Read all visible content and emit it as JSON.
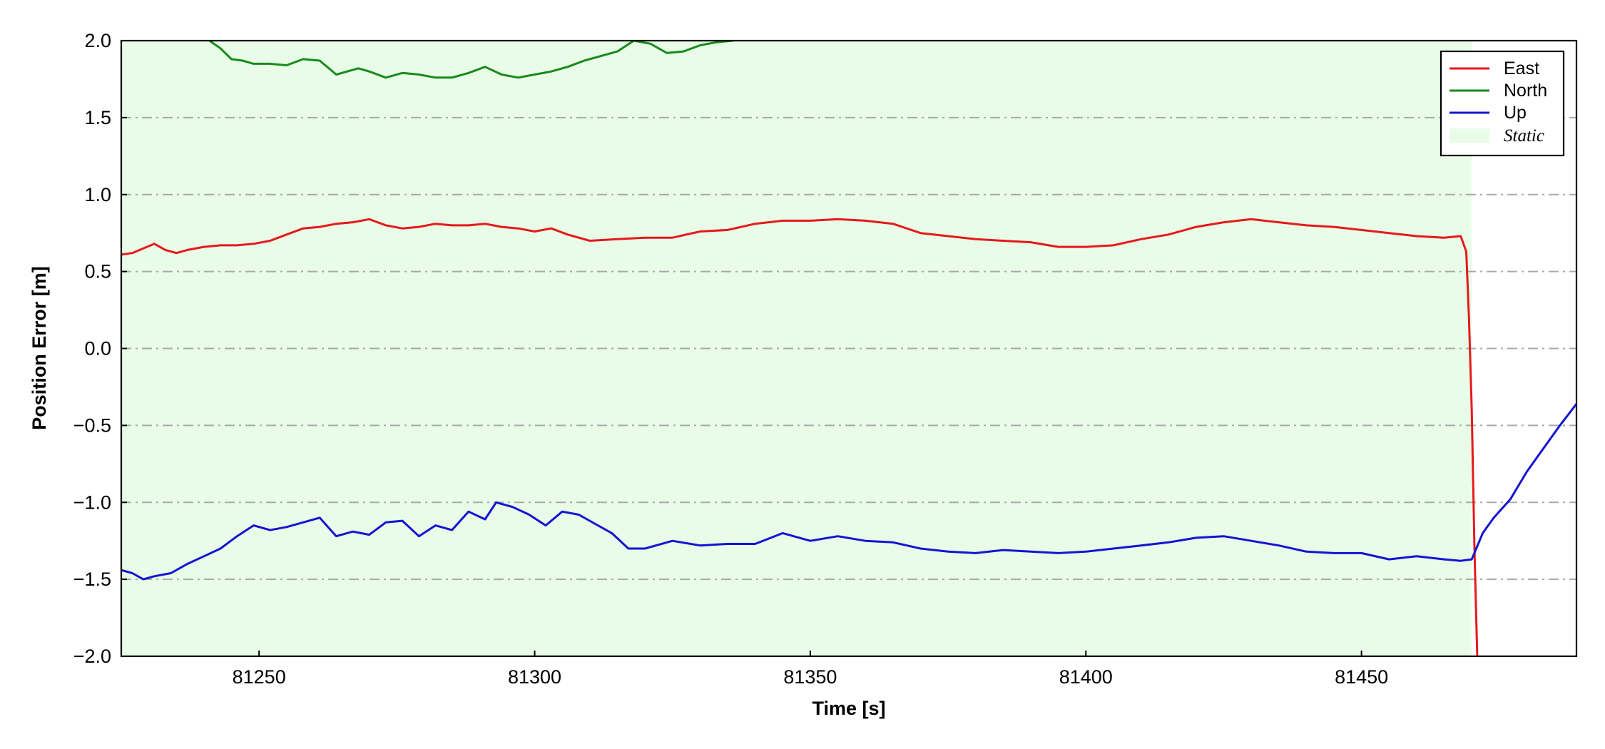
{
  "chart_data": {
    "type": "line",
    "title": "",
    "xlabel": "Time [s]",
    "ylabel": "Position Error [m]",
    "xlim": [
      81225,
      81489
    ],
    "ylim": [
      -2.0,
      2.0
    ],
    "xticks": [
      81250,
      81300,
      81350,
      81400,
      81450
    ],
    "xtick_labels": [
      "81250",
      "81300",
      "81350",
      "81400",
      "81450"
    ],
    "yticks": [
      -2.0,
      -1.5,
      -1.0,
      -0.5,
      0.0,
      0.5,
      1.0,
      1.5,
      2.0
    ],
    "ytick_labels": [
      "−2.0",
      "−1.5",
      "−1.0",
      "−0.5",
      "0.0",
      "0.5",
      "1.0",
      "1.5",
      "2.0"
    ],
    "grid": "horizontal dash-dot",
    "legend_position": "top-right",
    "shaded_region": {
      "name": "Static",
      "x_start": 81225,
      "x_end": 81470,
      "color": "#e8fce8"
    },
    "series": [
      {
        "name": "East",
        "color": "#e41a1c",
        "x": [
          81225,
          81227,
          81229,
          81231,
          81233,
          81235,
          81237,
          81240,
          81243,
          81246,
          81249,
          81252,
          81255,
          81258,
          81261,
          81264,
          81267,
          81270,
          81273,
          81276,
          81279,
          81282,
          81285,
          81288,
          81291,
          81294,
          81297,
          81300,
          81303,
          81306,
          81310,
          81315,
          81320,
          81325,
          81330,
          81335,
          81340,
          81345,
          81350,
          81355,
          81360,
          81365,
          81370,
          81375,
          81380,
          81385,
          81390,
          81395,
          81400,
          81405,
          81410,
          81415,
          81420,
          81425,
          81430,
          81435,
          81440,
          81445,
          81450,
          81455,
          81460,
          81465,
          81468,
          81469,
          81469.5,
          81470,
          81470.5,
          81471
        ],
        "y": [
          0.61,
          0.62,
          0.65,
          0.68,
          0.64,
          0.62,
          0.64,
          0.66,
          0.67,
          0.67,
          0.68,
          0.7,
          0.74,
          0.78,
          0.79,
          0.81,
          0.82,
          0.84,
          0.8,
          0.78,
          0.79,
          0.81,
          0.8,
          0.8,
          0.81,
          0.79,
          0.78,
          0.76,
          0.78,
          0.74,
          0.7,
          0.71,
          0.72,
          0.72,
          0.76,
          0.77,
          0.81,
          0.83,
          0.83,
          0.84,
          0.83,
          0.81,
          0.75,
          0.73,
          0.71,
          0.7,
          0.69,
          0.66,
          0.66,
          0.67,
          0.71,
          0.74,
          0.79,
          0.82,
          0.84,
          0.82,
          0.8,
          0.79,
          0.77,
          0.75,
          0.73,
          0.72,
          0.73,
          0.63,
          0.2,
          -0.4,
          -1.3,
          -2.0
        ]
      },
      {
        "name": "North",
        "color": "#1a8a1a",
        "x": [
          81241,
          81243,
          81245,
          81247,
          81249,
          81252,
          81255,
          81258,
          81261,
          81264,
          81266,
          81268,
          81270,
          81273,
          81276,
          81279,
          81282,
          81285,
          81288,
          81291,
          81294,
          81297,
          81300,
          81303,
          81306,
          81309,
          81312,
          81315,
          81318,
          81321,
          81324,
          81327,
          81330,
          81333,
          81336
        ],
        "y": [
          2.0,
          1.95,
          1.88,
          1.87,
          1.85,
          1.85,
          1.84,
          1.88,
          1.87,
          1.78,
          1.8,
          1.82,
          1.8,
          1.76,
          1.79,
          1.78,
          1.76,
          1.76,
          1.79,
          1.83,
          1.78,
          1.76,
          1.78,
          1.8,
          1.83,
          1.87,
          1.9,
          1.93,
          2.0,
          1.98,
          1.92,
          1.93,
          1.97,
          1.99,
          2.0
        ]
      },
      {
        "name": "Up",
        "color": "#1414d2",
        "x": [
          81225,
          81227,
          81229,
          81231,
          81234,
          81237,
          81240,
          81243,
          81246,
          81249,
          81252,
          81255,
          81258,
          81261,
          81264,
          81267,
          81270,
          81273,
          81276,
          81279,
          81282,
          81285,
          81288,
          81291,
          81293,
          81296,
          81299,
          81302,
          81305,
          81308,
          81311,
          81314,
          81317,
          81320,
          81325,
          81330,
          81335,
          81340,
          81345,
          81350,
          81355,
          81360,
          81365,
          81370,
          81375,
          81380,
          81385,
          81390,
          81395,
          81400,
          81405,
          81410,
          81415,
          81420,
          81425,
          81430,
          81435,
          81440,
          81445,
          81450,
          81455,
          81460,
          81465,
          81468,
          81470,
          81472,
          81474,
          81477,
          81480,
          81483,
          81486,
          81489
        ],
        "y": [
          -1.44,
          -1.46,
          -1.5,
          -1.48,
          -1.46,
          -1.4,
          -1.35,
          -1.3,
          -1.22,
          -1.15,
          -1.18,
          -1.16,
          -1.13,
          -1.1,
          -1.22,
          -1.19,
          -1.21,
          -1.13,
          -1.12,
          -1.22,
          -1.15,
          -1.18,
          -1.06,
          -1.11,
          -1.0,
          -1.03,
          -1.08,
          -1.15,
          -1.06,
          -1.08,
          -1.14,
          -1.2,
          -1.3,
          -1.3,
          -1.25,
          -1.28,
          -1.27,
          -1.27,
          -1.2,
          -1.25,
          -1.22,
          -1.25,
          -1.26,
          -1.3,
          -1.32,
          -1.33,
          -1.31,
          -1.32,
          -1.33,
          -1.32,
          -1.3,
          -1.28,
          -1.26,
          -1.23,
          -1.22,
          -1.25,
          -1.28,
          -1.32,
          -1.33,
          -1.33,
          -1.37,
          -1.35,
          -1.37,
          -1.38,
          -1.37,
          -1.2,
          -1.1,
          -0.98,
          -0.8,
          -0.65,
          -0.5,
          -0.36
        ]
      }
    ]
  }
}
